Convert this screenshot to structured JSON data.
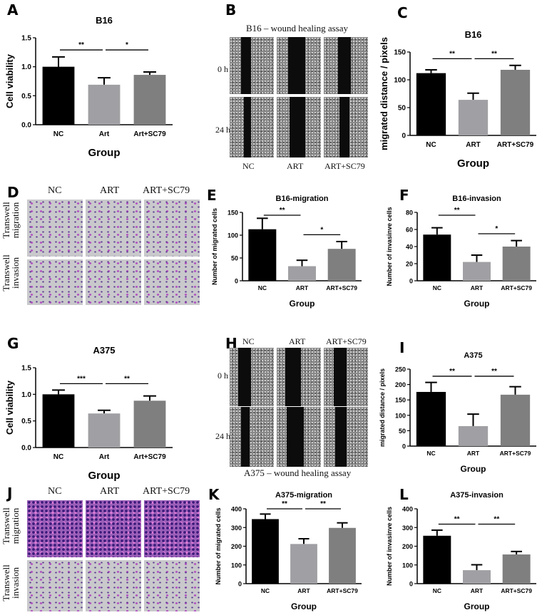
{
  "colors": {
    "NC": "#000000",
    "ART": "#a0a0a4",
    "ART+SC79": "#7f7f7f"
  },
  "panels": {
    "A": "A",
    "B": "B",
    "C": "C",
    "D": "D",
    "E": "E",
    "F": "F",
    "G": "G",
    "H": "H",
    "I": "I",
    "J": "J",
    "K": "K",
    "L": "L"
  },
  "wound_B": {
    "title": "B16 – wound healing assay",
    "rows": [
      "0 h",
      "24 h"
    ],
    "cols": [
      "NC",
      "ART",
      "ART+SC79"
    ]
  },
  "wound_H": {
    "title": "A375 – wound healing assay",
    "rows": [
      "0 h",
      "24 h"
    ],
    "cols": [
      "NC",
      "ART",
      "ART+SC79"
    ]
  },
  "transwell_D": {
    "rows": [
      "Transwell migration",
      "Transwell invasion"
    ],
    "cols": [
      "NC",
      "ART",
      "ART+SC79"
    ]
  },
  "transwell_J": {
    "rows": [
      "Transwell migration",
      "Transwell invasion"
    ],
    "cols": [
      "NC",
      "ART",
      "ART+SC79"
    ]
  },
  "chart_data": [
    {
      "panel": "A",
      "type": "bar",
      "title": "B16",
      "ylabel": "Cell viability",
      "xlabel": "Group",
      "categories": [
        "NC",
        "Art",
        "Art+SC79"
      ],
      "values": [
        1.0,
        0.69,
        0.86
      ],
      "errors": [
        0.17,
        0.12,
        0.05
      ],
      "ylim": [
        0,
        1.5
      ],
      "yticks": [
        "0.0",
        "0.5",
        "1.0",
        "1.5"
      ],
      "significance": [
        {
          "between": [
            "NC",
            "Art"
          ],
          "label": "**"
        },
        {
          "between": [
            "Art",
            "Art+SC79"
          ],
          "label": "*"
        }
      ]
    },
    {
      "panel": "C",
      "type": "bar",
      "title": "B16",
      "ylabel": "migrated distance / pixels",
      "xlabel": "Group",
      "categories": [
        "NC",
        "ART",
        "ART+SC79"
      ],
      "values": [
        112,
        64,
        118
      ],
      "errors": [
        6,
        12,
        8
      ],
      "ylim": [
        0,
        150
      ],
      "yticks": [
        "0",
        "50",
        "100",
        "150"
      ],
      "significance": [
        {
          "between": [
            "NC",
            "ART"
          ],
          "label": "**"
        },
        {
          "between": [
            "ART",
            "ART+SC79"
          ],
          "label": "**"
        }
      ]
    },
    {
      "panel": "E",
      "type": "bar",
      "title": "B16-migration",
      "ylabel": "Number of migrated cells",
      "xlabel": "Group",
      "categories": [
        "NC",
        "ART",
        "ART+SC79"
      ],
      "values": [
        113,
        32,
        70
      ],
      "errors": [
        24,
        13,
        16
      ],
      "ylim": [
        0,
        150
      ],
      "yticks": [
        "0",
        "50",
        "100",
        "150"
      ],
      "significance": [
        {
          "between": [
            "NC",
            "ART"
          ],
          "label": "**"
        },
        {
          "between": [
            "ART",
            "ART+SC79"
          ],
          "label": "*"
        }
      ]
    },
    {
      "panel": "F",
      "type": "bar",
      "title": "B16-invasion",
      "ylabel": "Number of invasinve cells",
      "xlabel": "Group",
      "categories": [
        "NC",
        "ART",
        "ART+SC79"
      ],
      "values": [
        54,
        22,
        40
      ],
      "errors": [
        8,
        8,
        7
      ],
      "ylim": [
        0,
        80
      ],
      "yticks": [
        "0",
        "20",
        "40",
        "60",
        "80"
      ],
      "significance": [
        {
          "between": [
            "NC",
            "ART"
          ],
          "label": "**"
        },
        {
          "between": [
            "ART",
            "ART+SC79"
          ],
          "label": "*"
        }
      ]
    },
    {
      "panel": "G",
      "type": "bar",
      "title": "A375",
      "ylabel": "Cell viability",
      "xlabel": "Group",
      "categories": [
        "NC",
        "Art",
        "Art+SC79"
      ],
      "values": [
        1.0,
        0.64,
        0.88
      ],
      "errors": [
        0.08,
        0.06,
        0.09
      ],
      "ylim": [
        0,
        1.5
      ],
      "yticks": [
        "0.0",
        "0.5",
        "1.0",
        "1.5"
      ],
      "significance": [
        {
          "between": [
            "NC",
            "Art"
          ],
          "label": "***"
        },
        {
          "between": [
            "Art",
            "Art+SC79"
          ],
          "label": "**"
        }
      ]
    },
    {
      "panel": "I",
      "type": "bar",
      "title": "A375",
      "ylabel": "migrated distance / pixels",
      "xlabel": "Group",
      "categories": [
        "NC",
        "ART",
        "ART+SC79"
      ],
      "values": [
        176,
        65,
        167
      ],
      "errors": [
        31,
        39,
        26
      ],
      "ylim": [
        0,
        250
      ],
      "yticks": [
        "0",
        "50",
        "100",
        "150",
        "200",
        "250"
      ],
      "significance": [
        {
          "between": [
            "NC",
            "ART"
          ],
          "label": "**"
        },
        {
          "between": [
            "ART",
            "ART+SC79"
          ],
          "label": "**"
        }
      ]
    },
    {
      "panel": "K",
      "type": "bar",
      "title": "A375-migration",
      "ylabel": "Number of migrated cells",
      "xlabel": "Group",
      "categories": [
        "NC",
        "ART",
        "ART+SC79"
      ],
      "values": [
        345,
        212,
        298
      ],
      "errors": [
        27,
        28,
        27
      ],
      "ylim": [
        0,
        400
      ],
      "yticks": [
        "0",
        "100",
        "200",
        "300",
        "400"
      ],
      "significance": [
        {
          "between": [
            "NC",
            "ART"
          ],
          "label": "**"
        },
        {
          "between": [
            "ART",
            "ART+SC79"
          ],
          "label": "**"
        }
      ]
    },
    {
      "panel": "L",
      "type": "bar",
      "title": "A375-invasion",
      "ylabel": "Number of invasinve cells",
      "xlabel": "Group",
      "categories": [
        "NC",
        "ART",
        "ART+SC79"
      ],
      "values": [
        256,
        72,
        156
      ],
      "errors": [
        30,
        29,
        16
      ],
      "ylim": [
        0,
        400
      ],
      "yticks": [
        "0",
        "100",
        "200",
        "300",
        "400"
      ],
      "significance": [
        {
          "between": [
            "NC",
            "ART"
          ],
          "label": "**"
        },
        {
          "between": [
            "ART",
            "ART+SC79"
          ],
          "label": "**"
        }
      ]
    }
  ]
}
